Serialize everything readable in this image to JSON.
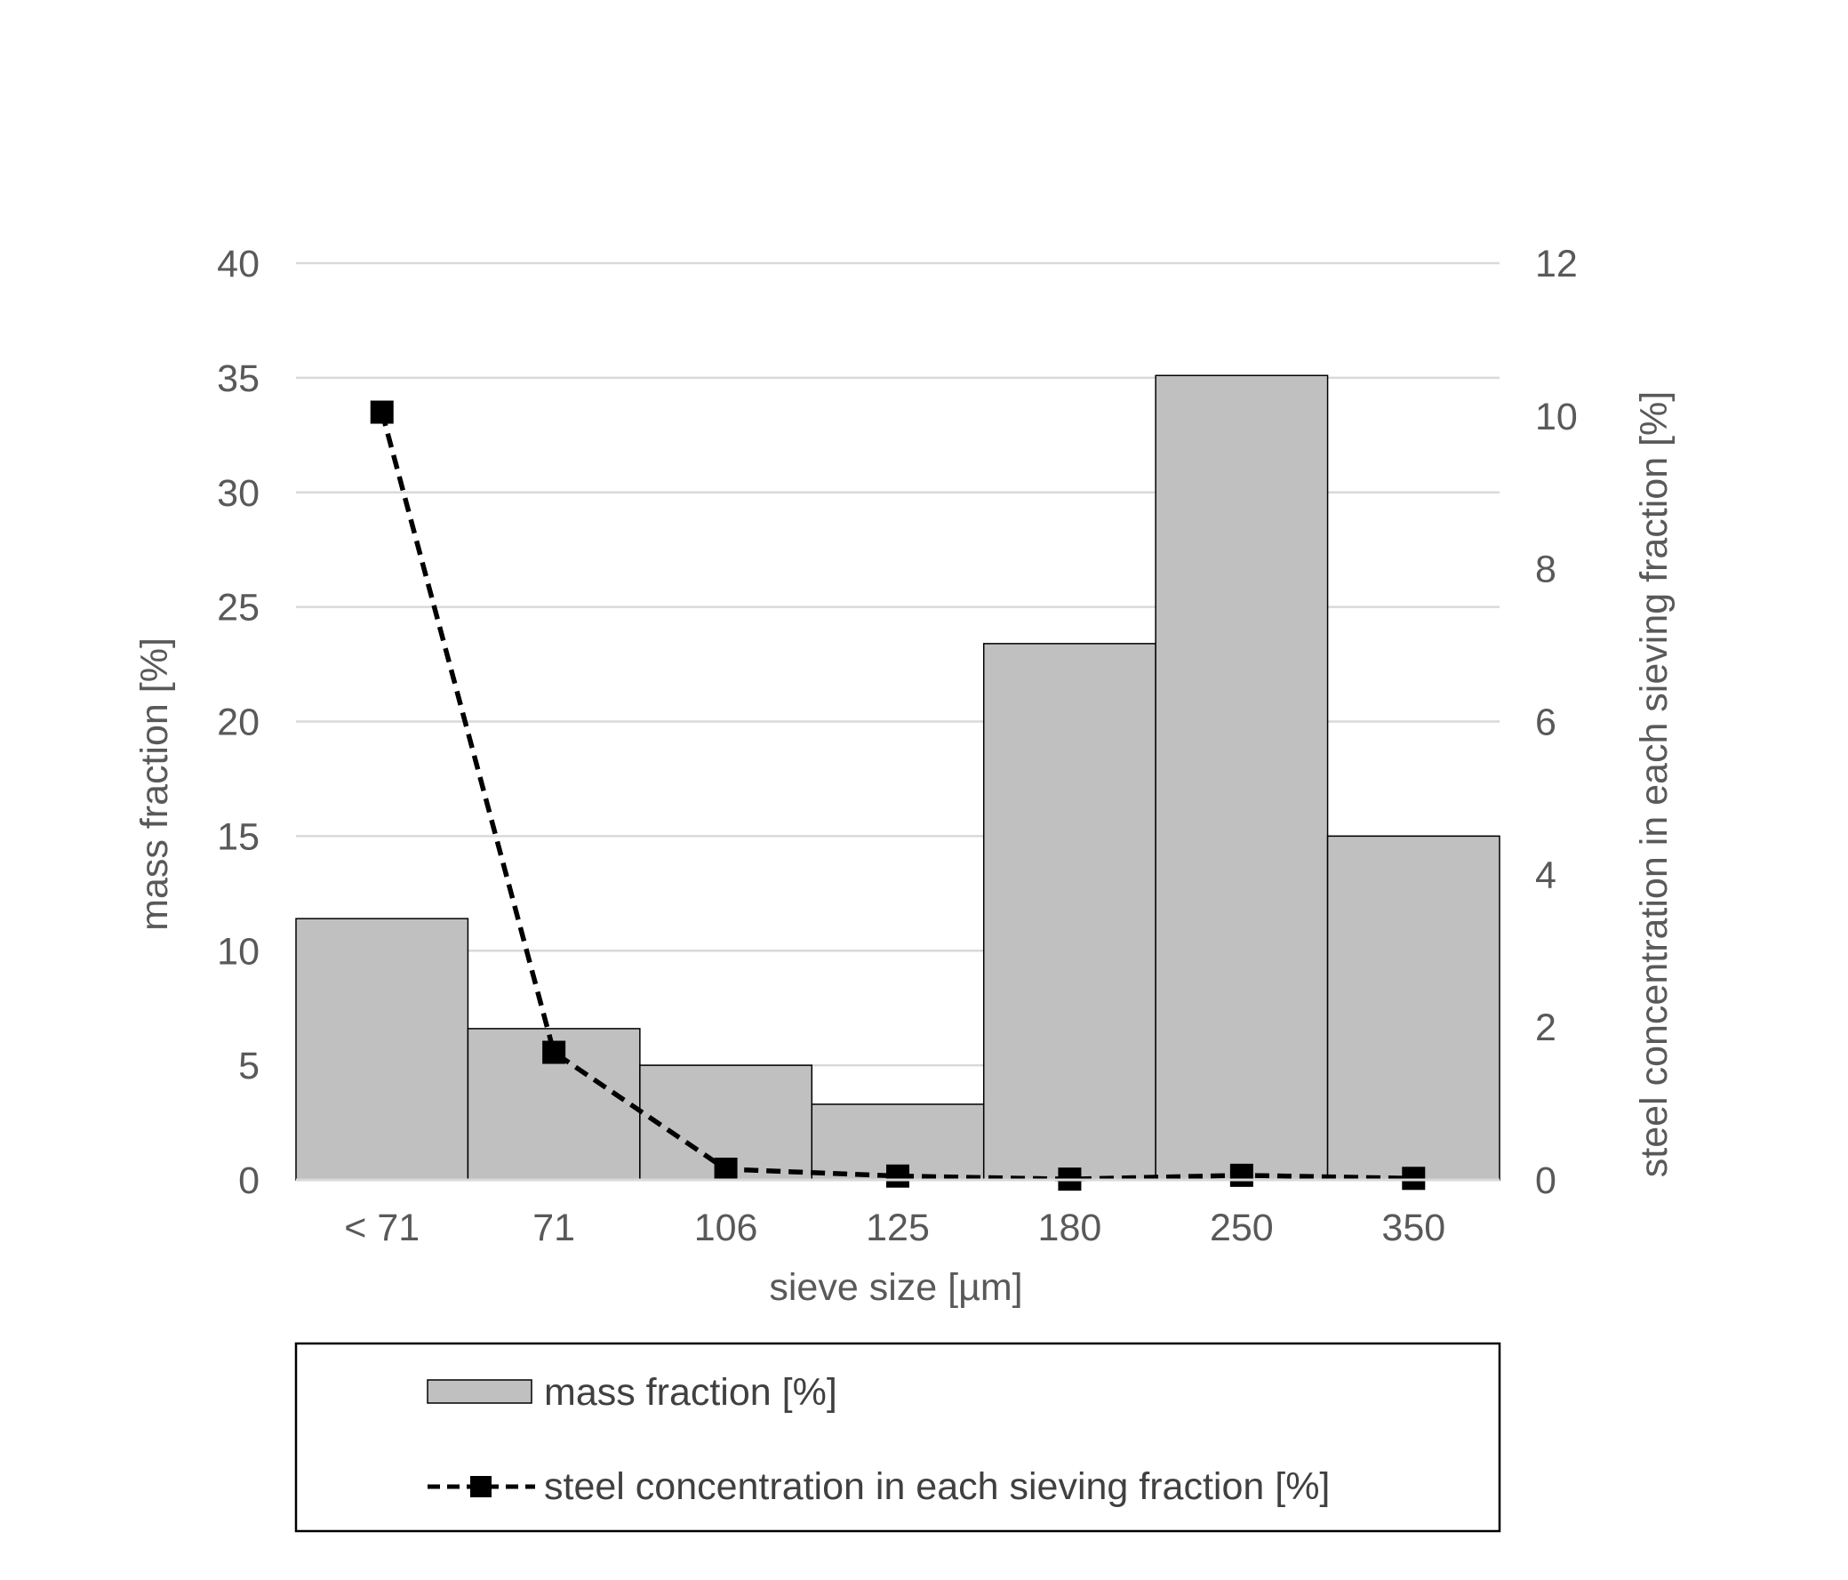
{
  "chart_data": {
    "type": "bar",
    "categories": [
      "< 71",
      "71",
      "106",
      "125",
      "180",
      "250",
      "350"
    ],
    "series": [
      {
        "name": "mass fraction [%]",
        "type": "bar",
        "axis": "left",
        "values": [
          11.4,
          6.6,
          5.0,
          3.3,
          23.4,
          35.1,
          15.0
        ],
        "color": "#c0c0c0"
      },
      {
        "name": "steel concentration in each sieving fraction [%]",
        "type": "line",
        "axis": "right",
        "values": [
          10.05,
          1.67,
          0.14,
          0.05,
          0.01,
          0.06,
          0.02
        ],
        "color": "#000000",
        "line_style": "dashed",
        "marker": "square"
      }
    ],
    "xlabel": "sieve size [µm]",
    "ylabel": "mass fraction [%]",
    "y2label": "steel concentration in each sieving fraction [%]",
    "ylim": [
      0,
      40
    ],
    "y2lim": [
      0,
      12
    ],
    "yticks": [
      0,
      5,
      10,
      15,
      20,
      25,
      30,
      35,
      40
    ],
    "y2ticks": [
      0,
      2,
      4,
      6,
      8,
      10,
      12
    ],
    "grid": true,
    "legend_position": "bottom"
  }
}
